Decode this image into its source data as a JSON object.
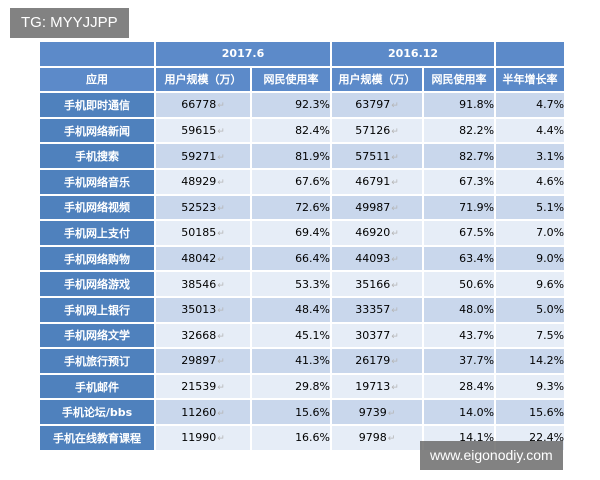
{
  "watermark_top": "TG: MYYJJPP",
  "watermark_bottom": "www.eigonodiy.com",
  "header": {
    "period1": "2017.6",
    "period2": "2016.12",
    "app_col": "应用",
    "users1": "用户规模（万）",
    "rate1": "网民使用率",
    "users2": "用户规模（万）",
    "rate2": "网民使用率",
    "growth": "半年增长率"
  },
  "mark": "↵",
  "rows": [
    {
      "app": "手机即时通信",
      "u1": "66778",
      "r1": "92.3%",
      "u2": "63797",
      "r2": "91.8%",
      "g": "4.7%"
    },
    {
      "app": "手机网络新闻",
      "u1": "59615",
      "r1": "82.4%",
      "u2": "57126",
      "r2": "82.2%",
      "g": "4.4%"
    },
    {
      "app": "手机搜索",
      "u1": "59271",
      "r1": "81.9%",
      "u2": "57511",
      "r2": "82.7%",
      "g": "3.1%"
    },
    {
      "app": "手机网络音乐",
      "u1": "48929",
      "r1": "67.6%",
      "u2": "46791",
      "r2": "67.3%",
      "g": "4.6%"
    },
    {
      "app": "手机网络视频",
      "u1": "52523",
      "r1": "72.6%",
      "u2": "49987",
      "r2": "71.9%",
      "g": "5.1%"
    },
    {
      "app": "手机网上支付",
      "u1": "50185",
      "r1": "69.4%",
      "u2": "46920",
      "r2": "67.5%",
      "g": "7.0%"
    },
    {
      "app": "手机网络购物",
      "u1": "48042",
      "r1": "66.4%",
      "u2": "44093",
      "r2": "63.4%",
      "g": "9.0%"
    },
    {
      "app": "手机网络游戏",
      "u1": "38546",
      "r1": "53.3%",
      "u2": "35166",
      "r2": "50.6%",
      "g": "9.6%"
    },
    {
      "app": "手机网上银行",
      "u1": "35013",
      "r1": "48.4%",
      "u2": "33357",
      "r2": "48.0%",
      "g": "5.0%"
    },
    {
      "app": "手机网络文学",
      "u1": "32668",
      "r1": "45.1%",
      "u2": "30377",
      "r2": "43.7%",
      "g": "7.5%"
    },
    {
      "app": "手机旅行预订",
      "u1": "29897",
      "r1": "41.3%",
      "u2": "26179",
      "r2": "37.7%",
      "g": "14.2%"
    },
    {
      "app": "手机邮件",
      "u1": "21539",
      "r1": "29.8%",
      "u2": "19713",
      "r2": "28.4%",
      "g": "9.3%"
    },
    {
      "app": "手机论坛/bbs",
      "u1": "11260",
      "r1": "15.6%",
      "u2": "9739",
      "r2": "14.0%",
      "g": "15.6%"
    },
    {
      "app": "手机在线教育课程",
      "u1": "11990",
      "r1": "16.6%",
      "u2": "9798",
      "r2": "14.1%",
      "g": "22.4%"
    }
  ]
}
